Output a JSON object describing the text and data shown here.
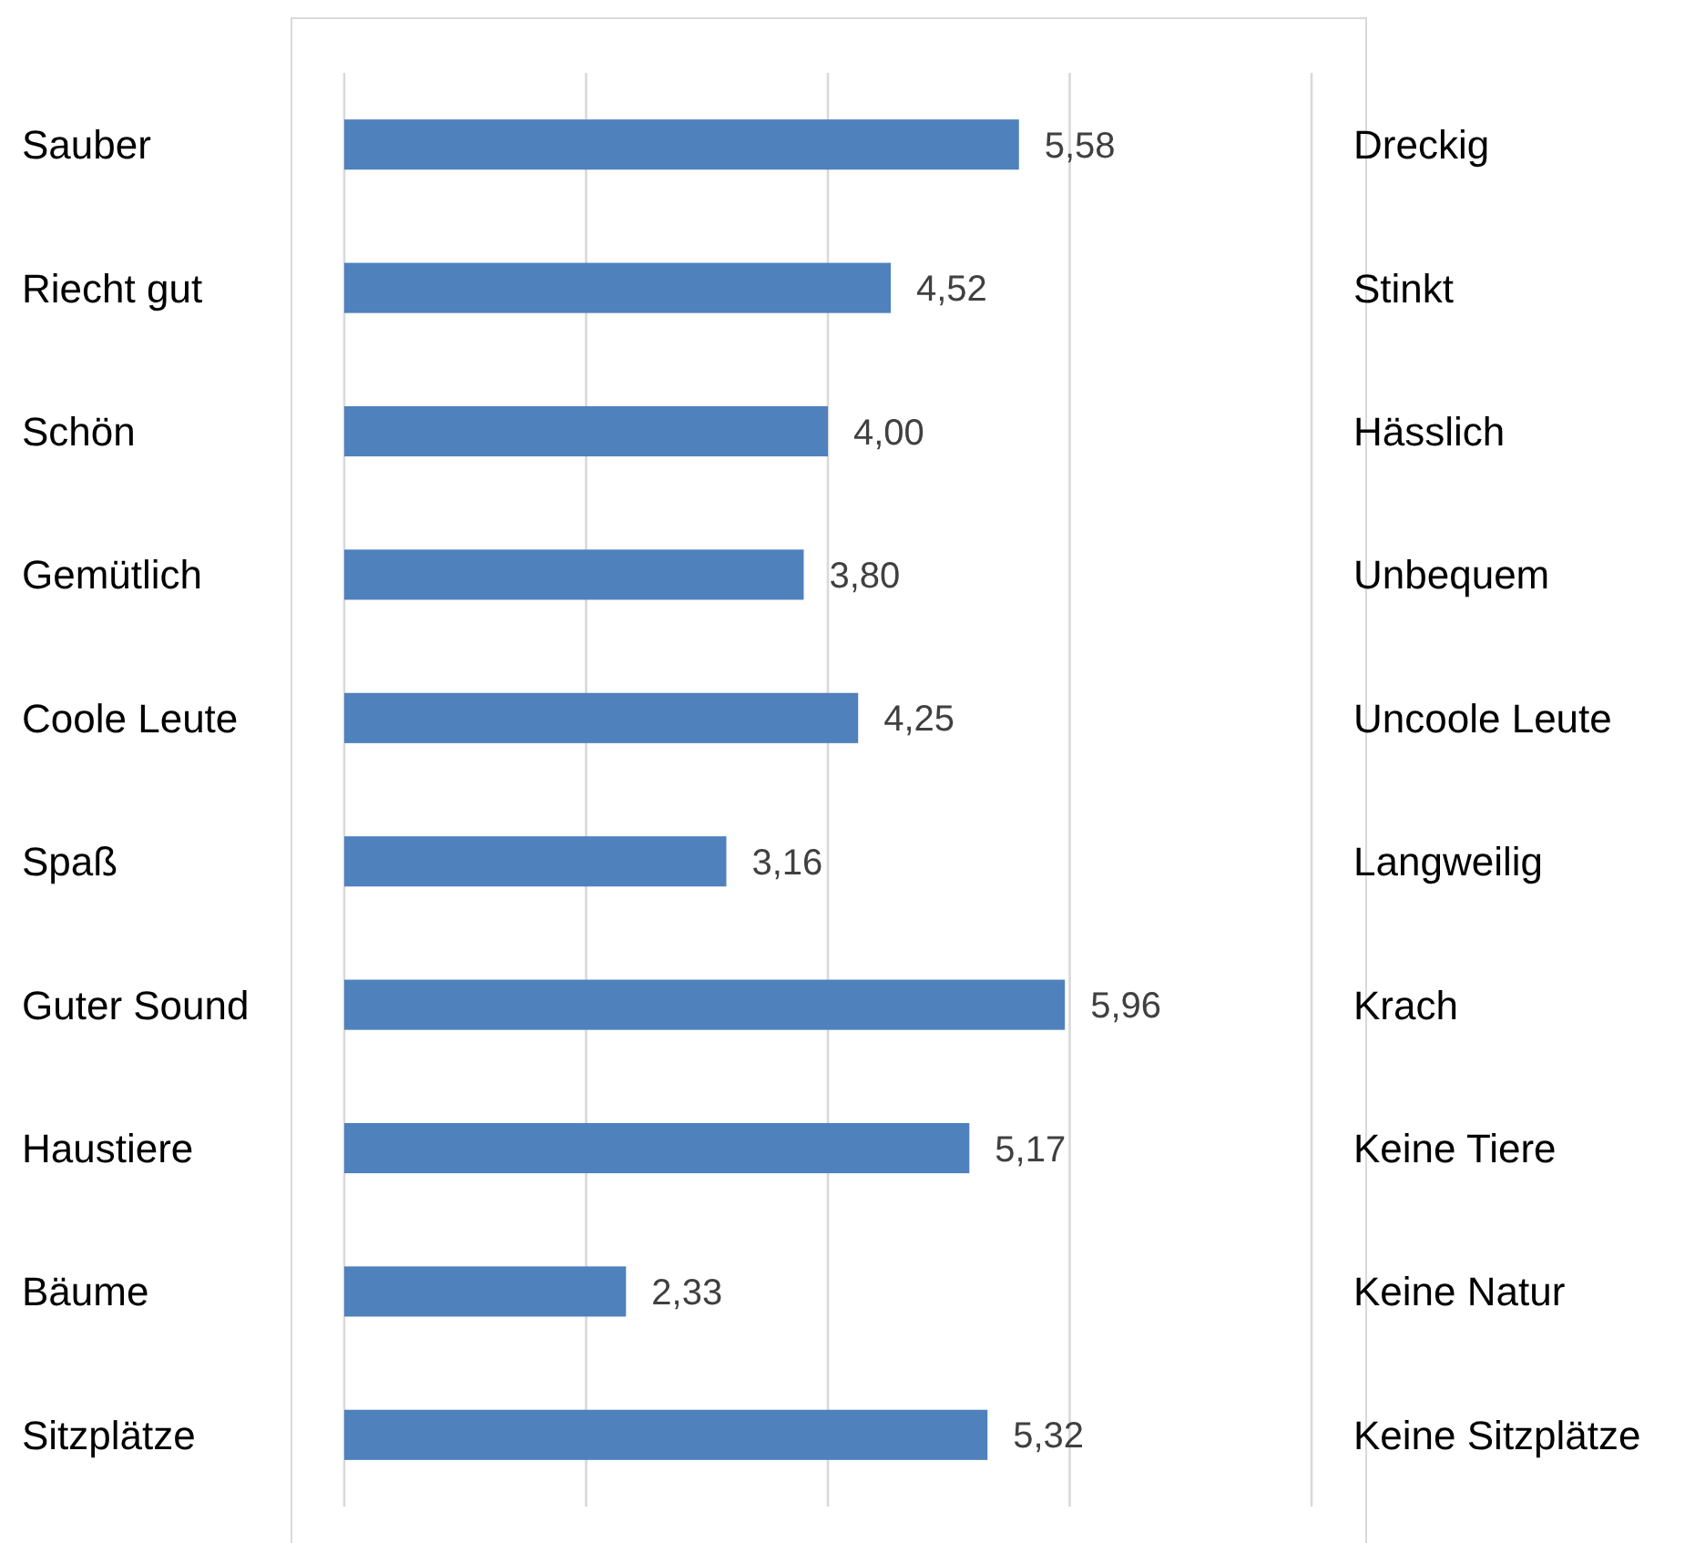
{
  "chart_data": {
    "type": "bar",
    "orientation": "horizontal",
    "categories": [
      "Sauber",
      "Riecht gut",
      "Schön",
      "Gemütlich",
      "Coole Leute",
      "Spaß",
      "Guter Sound",
      "Haustiere",
      "Bäume",
      "Sitzplätze"
    ],
    "y2_categories": [
      "Dreckig",
      "Stinkt",
      "Hässlich",
      "Unbequem",
      "Uncoole Leute",
      "Langweilig",
      "Krach",
      "Keine Tiere",
      "Keine Natur",
      "Keine Sitzplätze"
    ],
    "values": [
      5.58,
      4.52,
      4.0,
      3.8,
      4.25,
      3.16,
      5.96,
      5.17,
      2.33,
      5.32
    ],
    "value_labels": [
      "5,58",
      "4,52",
      "4,00",
      "3,80",
      "4,25",
      "3,16",
      "5,96",
      "5,17",
      "2,33",
      "5,32"
    ],
    "color": "#4f81bd",
    "xlim": [
      0,
      8
    ],
    "xticks": [
      {
        "value": 0,
        "label": null
      },
      {
        "value": 2,
        "label": null
      },
      {
        "value": 4,
        "label": null
      },
      {
        "value": 6,
        "label": null
      },
      {
        "value": 8,
        "label": null
      }
    ],
    "tick_labels": "y",
    "grid": "x"
  }
}
